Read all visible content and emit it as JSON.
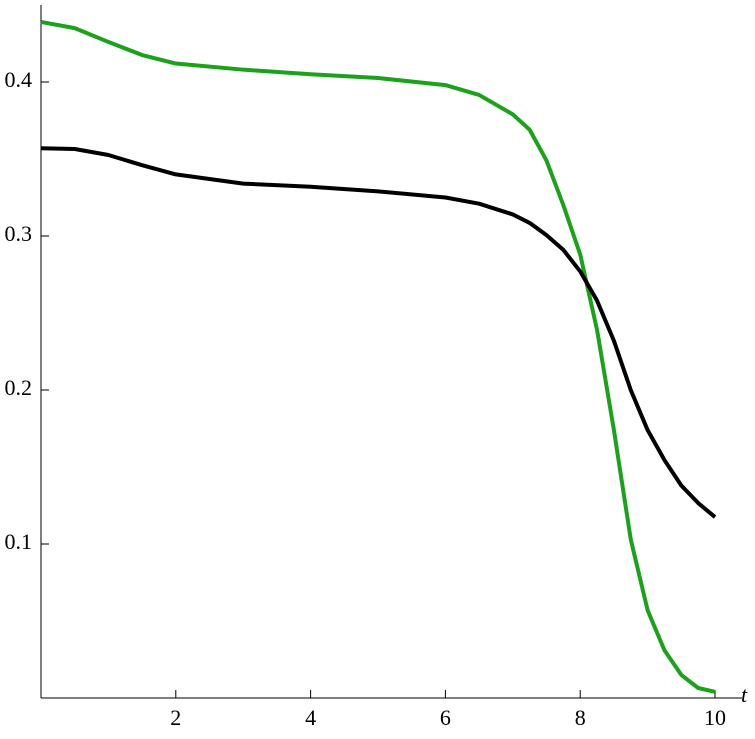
{
  "chart_data": {
    "type": "line",
    "x_label": "t",
    "x": [
      0,
      0.5,
      1,
      1.5,
      2,
      3,
      4,
      5,
      6,
      6.5,
      7,
      7.25,
      7.5,
      7.75,
      8,
      8.25,
      8.5,
      8.75,
      9,
      9.25,
      9.5,
      9.75,
      10
    ],
    "series": [
      {
        "color": "#1aa31a",
        "values": [
          0.439,
          0.435,
          0.426,
          0.4175,
          0.412,
          0.408,
          0.405,
          0.4026,
          0.398,
          0.3916,
          0.379,
          0.369,
          0.349,
          0.32,
          0.288,
          0.239,
          0.174,
          0.103,
          0.057,
          0.031,
          0.015,
          0.0065,
          0.004
        ]
      },
      {
        "color": "#000000",
        "values": [
          0.357,
          0.3565,
          0.3526,
          0.346,
          0.34,
          0.334,
          0.332,
          0.329,
          0.325,
          0.321,
          0.314,
          0.3085,
          0.3006,
          0.291,
          0.277,
          0.258,
          0.232,
          0.2,
          0.174,
          0.1545,
          0.138,
          0.1266,
          0.1175
        ]
      }
    ],
    "xlim": [
      0,
      10
    ],
    "ylim": [
      0,
      0.445
    ],
    "xticks": [
      2,
      4,
      6,
      8,
      10
    ],
    "yticks": [
      0.1,
      0.2,
      0.3,
      0.4
    ]
  }
}
